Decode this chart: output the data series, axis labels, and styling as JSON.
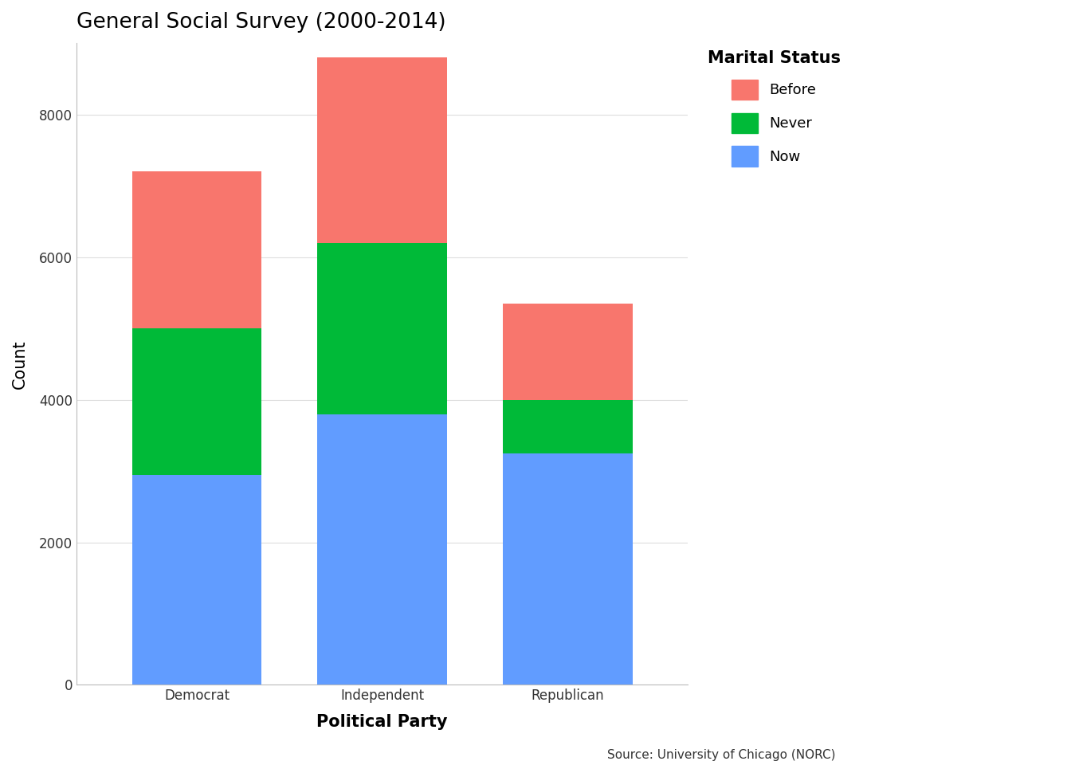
{
  "title": "General Social Survey (2000-2014)",
  "xlabel": "Political Party",
  "ylabel": "Count",
  "source": "Source: University of Chicago (NORC)",
  "categories": [
    "Democrat",
    "Independent",
    "Republican"
  ],
  "now_values": [
    2950,
    3800,
    3250
  ],
  "never_values": [
    2050,
    2400,
    750
  ],
  "before_values": [
    2200,
    2600,
    1350
  ],
  "color_now": "#619CFF",
  "color_never": "#00BA38",
  "color_before": "#F8766D",
  "ylim": [
    0,
    9000
  ],
  "yticks": [
    0,
    2000,
    4000,
    6000,
    8000
  ],
  "bar_width": 0.7,
  "background_color": "#FFFFFF",
  "plot_bg_color": "#FFFFFF",
  "grid_color": "#DDDDDD",
  "title_fontsize": 19,
  "axis_label_fontsize": 15,
  "tick_fontsize": 12,
  "legend_title_fontsize": 14,
  "legend_fontsize": 13,
  "source_fontsize": 11
}
